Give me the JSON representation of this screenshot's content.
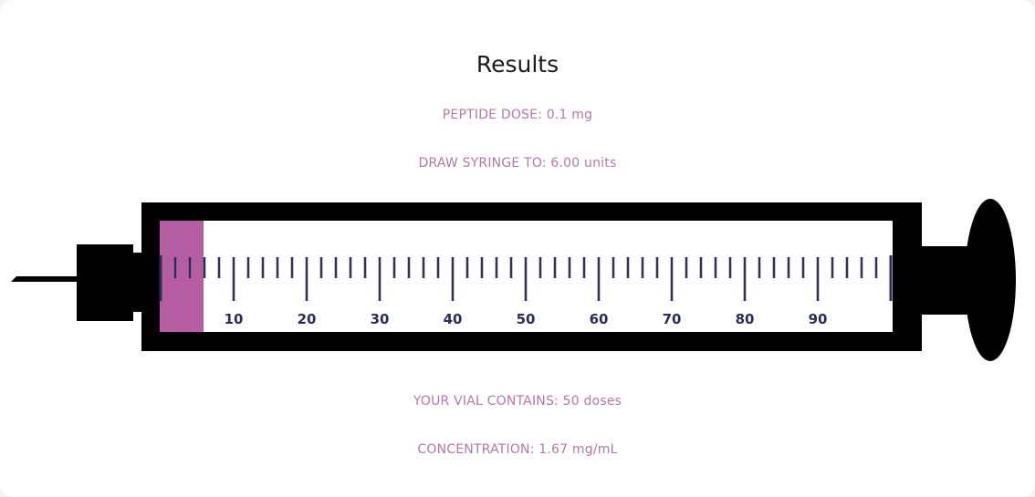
{
  "results": {
    "title": "Results",
    "peptide_dose": "PEPTIDE DOSE: 0.1 mg",
    "draw_to": "DRAW SYRINGE TO: 6.00 units",
    "vial_contains": "YOUR VIAL CONTAINS: 50 doses",
    "concentration": "CONCENTRATION: 1.67 mg/mL"
  },
  "syringe": {
    "max_units": 100,
    "fill_units": 6,
    "tick_step": 2,
    "labels": [
      "10",
      "20",
      "30",
      "40",
      "50",
      "60",
      "70",
      "80",
      "90"
    ],
    "fill_color": "#b55ea3",
    "tick_color": "#2d2d55",
    "body_color": "#000000"
  }
}
